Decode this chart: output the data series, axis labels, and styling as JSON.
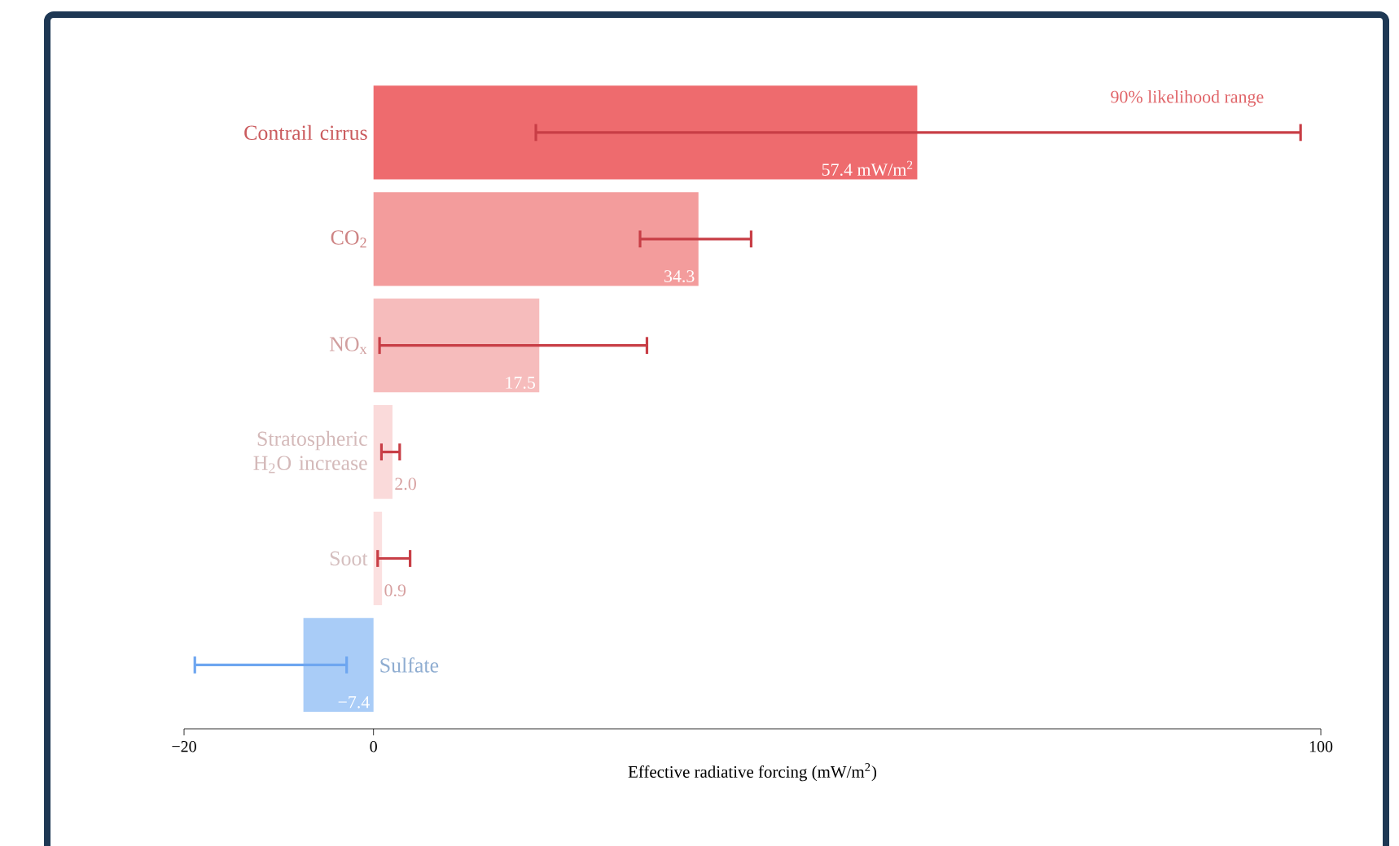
{
  "chart_data": {
    "type": "bar",
    "orientation": "horizontal",
    "xlabel": "Effective radiative forcing (mW/m$^{2}$)",
    "categories": [
      "Contrail cirrus",
      "CO$_{2}$",
      "NO$_{x}$",
      "Stratospheric H$_{2}$O increase",
      "Soot",
      "Sulfate"
    ],
    "values": [
      57.4,
      34.3,
      17.5,
      2.0,
      0.9,
      -7.4
    ],
    "colors": [
      "#ee6b6e",
      "#f39c9c",
      "#f6bcbc",
      "#fadada",
      "#fbe0e0",
      "#a9ccf7"
    ],
    "errors": [
      [
        17,
        98
      ],
      [
        28,
        40
      ],
      [
        0.5,
        29
      ],
      [
        0.7,
        2.9
      ],
      [
        0.3,
        4
      ],
      [
        -19,
        -2.7
      ]
    ],
    "value_labels": [
      "57.4 mW/m$^{2}$",
      "34.3",
      "17.5",
      "2.0",
      "0.9",
      "−7.4"
    ],
    "annotations": [
      "90% likelihood range"
    ],
    "xlim": [
      -20,
      100
    ],
    "xticks": [
      {
        "value": -20,
        "label": "−20"
      },
      0,
      100
    ],
    "grid": false
  }
}
